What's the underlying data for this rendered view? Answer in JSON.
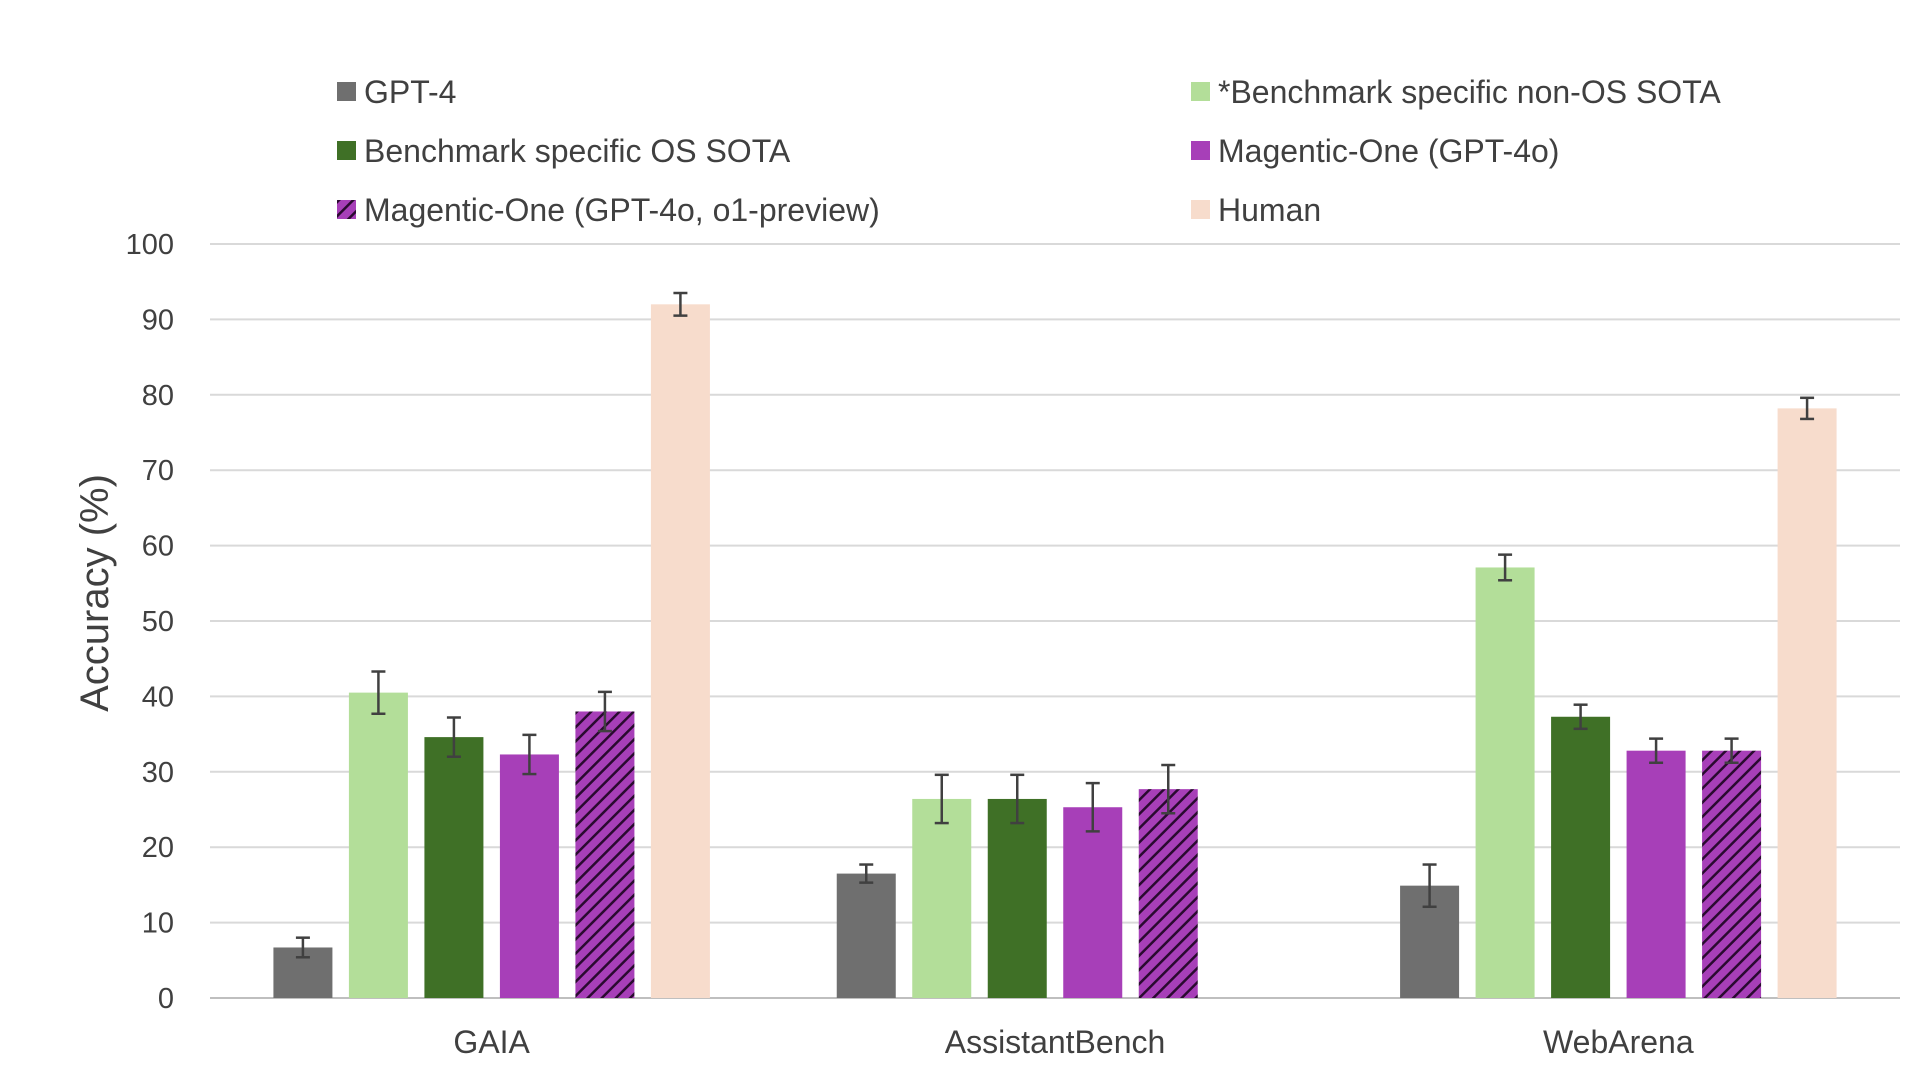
{
  "chart_data": {
    "type": "bar",
    "ylabel": "Accuracy (%)",
    "ylim": [
      0,
      100
    ],
    "yticks": [
      0,
      10,
      20,
      30,
      40,
      50,
      60,
      70,
      80,
      90,
      100
    ],
    "grid": true,
    "legend_position": "top",
    "categories": [
      "GAIA",
      "AssistantBench",
      "WebArena"
    ],
    "series": [
      {
        "name": "GPT-4",
        "color": "#6f6f6f",
        "pattern": "solid",
        "values": [
          6.7,
          16.5,
          14.9
        ],
        "error": [
          1.3,
          1.2,
          2.8
        ]
      },
      {
        "name": "*Benchmark specific non-OS SOTA",
        "color": "#b3de99",
        "pattern": "solid",
        "values": [
          40.5,
          26.4,
          57.1
        ],
        "error": [
          2.8,
          3.2,
          1.7
        ]
      },
      {
        "name": "Benchmark specific OS SOTA",
        "color": "#3f7026",
        "pattern": "solid",
        "values": [
          34.6,
          26.4,
          37.3
        ],
        "error": [
          2.6,
          3.2,
          1.6
        ]
      },
      {
        "name": "Magentic-One (GPT-4o)",
        "color": "#a73fb8",
        "pattern": "solid",
        "values": [
          32.3,
          25.3,
          32.8
        ],
        "error": [
          2.6,
          3.2,
          1.6
        ]
      },
      {
        "name": "Magentic-One (GPT-4o, o1-preview)",
        "color": "#a73fb8",
        "pattern": "hatched",
        "values": [
          38.0,
          27.7,
          32.8
        ],
        "error": [
          2.6,
          3.2,
          1.6
        ]
      },
      {
        "name": "Human",
        "color": "#f7dccc",
        "pattern": "solid",
        "values": [
          92.0,
          null,
          78.2
        ],
        "error": [
          1.5,
          null,
          1.4
        ]
      }
    ]
  }
}
